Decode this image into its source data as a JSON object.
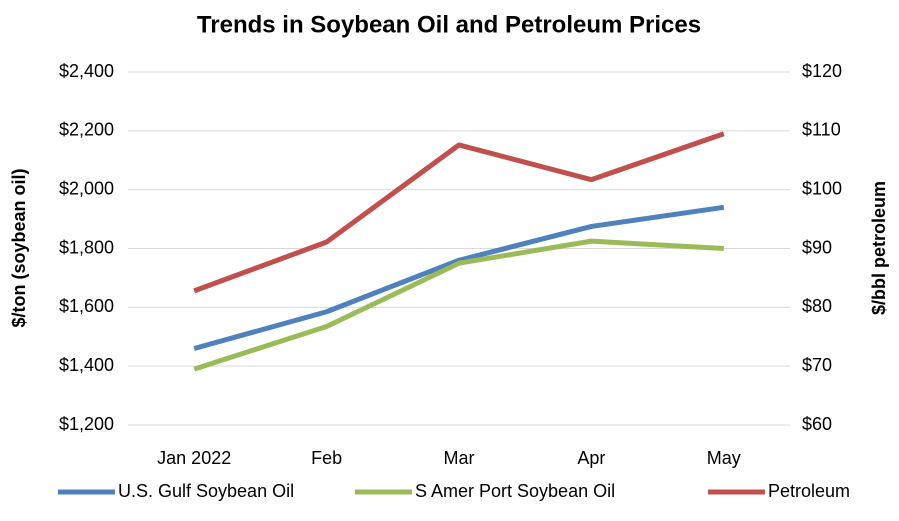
{
  "chart_data": {
    "type": "line",
    "title": "Trends in Soybean Oil and Petroleum Prices",
    "y_label": "$/ton (soybean oil)",
    "y2_label": "$/bbl petroleum",
    "categories": [
      "Jan 2022",
      "Feb",
      "Mar",
      "Apr",
      "May"
    ],
    "series": [
      {
        "name": "U.S. Gulf Soybean Oil",
        "color": "#4f81bd",
        "values": [
          1460,
          1585,
          1760,
          1875,
          1940
        ]
      },
      {
        "name": "S Amer Port Soybean Oil",
        "color": "#9bbb59",
        "values": [
          1390,
          1535,
          1750,
          1825,
          1800
        ]
      },
      {
        "name": "Petroleum",
        "color": "#c0504d",
        "axis": "y2",
        "values": [
          82.8,
          91.1,
          107.6,
          101.7,
          109.5
        ]
      }
    ],
    "ylim": [
      1200,
      2400
    ],
    "yticks": [
      {
        "value": 1200,
        "label": "$1,200"
      },
      {
        "value": 1400,
        "label": "$1,400"
      },
      {
        "value": 1600,
        "label": "$1,600"
      },
      {
        "value": 1800,
        "label": "$1,800"
      },
      {
        "value": 2000,
        "label": "$2,000"
      },
      {
        "value": 2200,
        "label": "$2,200"
      },
      {
        "value": 2400,
        "label": "$2,400"
      }
    ],
    "y2lim": [
      60,
      120
    ],
    "y2ticks": [
      {
        "value": 60,
        "label": "$60"
      },
      {
        "value": 70,
        "label": "$70"
      },
      {
        "value": 80,
        "label": "$80"
      },
      {
        "value": 90,
        "label": "$90"
      },
      {
        "value": 100,
        "label": "$100"
      },
      {
        "value": 110,
        "label": "$110"
      },
      {
        "value": 120,
        "label": "$120"
      }
    ],
    "grid": true,
    "legend": "bottom"
  }
}
